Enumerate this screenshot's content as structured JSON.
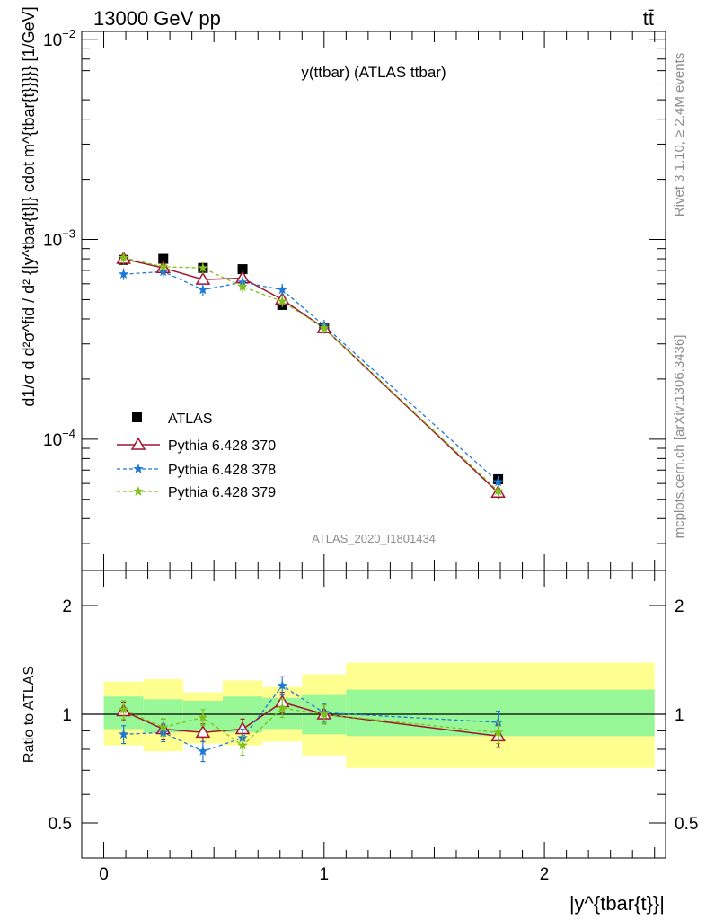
{
  "header": {
    "energy": "13000 GeV pp",
    "process": "tt̄"
  },
  "side": {
    "rivet": "Rivet 3.1.10, ≥ 2.4M events",
    "mcplots": "mcplots.cern.ch [arXiv:1306.3436]"
  },
  "colors": {
    "data": "#000000",
    "p370": "#a0142d",
    "p378": "#1f78d6",
    "p379": "#80c01a",
    "band_inner": "#98f898",
    "band_outer": "#ffff90"
  },
  "chart_data": [
    {
      "type": "scatter",
      "title": "y(ttbar) (ATLAS ttbar)",
      "analysis": "ATLAS_2020_I1801434",
      "ylabel": "d1/σ d d²σ^fid / d² {|y^tbar{t}|} cdot m^{tbar{t}}}}} [1/GeV]",
      "yscale": "log",
      "xlim": [
        -0.1,
        2.55
      ],
      "ylim": [
        2.2e-05,
        0.011
      ],
      "y_ticks": [
        {
          "value": 0.0001,
          "label": "10",
          "exp": "−4"
        },
        {
          "value": 0.001,
          "label": "10",
          "exp": "−3"
        },
        {
          "value": 0.01,
          "label": "10",
          "exp": "−2"
        }
      ],
      "legend": {
        "position": "bottom-left",
        "entries": [
          "ATLAS",
          "Pythia 6.428 370",
          "Pythia 6.428 378",
          "Pythia 6.428 379"
        ]
      },
      "x": [
        0.09,
        0.27,
        0.45,
        0.63,
        0.81,
        1.0,
        1.79
      ],
      "series": [
        {
          "name": "ATLAS",
          "marker": "square",
          "values": [
            0.00079,
            0.0008,
            0.00072,
            0.00071,
            0.00047,
            0.00036,
            6.3e-05
          ]
        },
        {
          "name": "Pythia 6.428 370",
          "marker": "triangle",
          "values": [
            0.0008,
            0.00072,
            0.00063,
            0.00064,
            0.0005,
            0.00036,
            5.4e-05
          ]
        },
        {
          "name": "Pythia 6.428 378",
          "marker": "star",
          "values": [
            0.00067,
            0.00069,
            0.00056,
            0.00061,
            0.00056,
            0.00037,
            6.1e-05
          ]
        },
        {
          "name": "Pythia 6.428 379",
          "marker": "star",
          "values": [
            0.00081,
            0.00073,
            0.00072,
            0.00058,
            0.00049,
            0.00036,
            5.5e-05
          ]
        }
      ]
    },
    {
      "type": "scatter",
      "ylabel": "Ratio to ATLAS",
      "xlabel": "|y^{tbar{t}}|",
      "yscale": "log",
      "xlim": [
        -0.1,
        2.55
      ],
      "ylim": [
        0.4,
        2.5
      ],
      "x_ticks": [
        {
          "value": 0,
          "label": "0"
        },
        {
          "value": 1,
          "label": "1"
        },
        {
          "value": 2,
          "label": "2"
        }
      ],
      "y_ticks": [
        {
          "value": 0.5,
          "label": "0.5"
        },
        {
          "value": 1,
          "label": "1"
        },
        {
          "value": 2,
          "label": "2"
        }
      ],
      "bins": [
        {
          "lo": 0.0,
          "hi": 0.18,
          "inner": [
            0.91,
            1.12
          ],
          "outer": [
            0.82,
            1.23
          ]
        },
        {
          "lo": 0.18,
          "hi": 0.36,
          "inner": [
            0.89,
            1.1
          ],
          "outer": [
            0.79,
            1.25
          ]
        },
        {
          "lo": 0.36,
          "hi": 0.54,
          "inner": [
            0.9,
            1.09
          ],
          "outer": [
            0.83,
            1.15
          ]
        },
        {
          "lo": 0.54,
          "hi": 0.72,
          "inner": [
            0.89,
            1.12
          ],
          "outer": [
            0.82,
            1.24
          ]
        },
        {
          "lo": 0.72,
          "hi": 0.9,
          "inner": [
            0.91,
            1.11
          ],
          "outer": [
            0.84,
            1.19
          ]
        },
        {
          "lo": 0.9,
          "hi": 1.1,
          "inner": [
            0.88,
            1.13
          ],
          "outer": [
            0.77,
            1.29
          ]
        },
        {
          "lo": 1.1,
          "hi": 2.5,
          "inner": [
            0.87,
            1.17
          ],
          "outer": [
            0.71,
            1.39
          ]
        }
      ],
      "x": [
        0.09,
        0.27,
        0.45,
        0.63,
        0.81,
        1.0,
        1.79
      ],
      "series": [
        {
          "name": "Pythia 6.428 370",
          "values": [
            1.02,
            0.91,
            0.89,
            0.91,
            1.08,
            1.0,
            0.87
          ],
          "err": [
            0.06,
            0.06,
            0.05,
            0.06,
            0.07,
            0.06,
            0.06
          ]
        },
        {
          "name": "Pythia 6.428 378",
          "values": [
            0.88,
            0.89,
            0.79,
            0.86,
            1.2,
            1.01,
            0.95
          ],
          "err": [
            0.05,
            0.05,
            0.05,
            0.05,
            0.07,
            0.06,
            0.07
          ]
        },
        {
          "name": "Pythia 6.428 379",
          "values": [
            1.03,
            0.92,
            0.98,
            0.82,
            1.04,
            1.0,
            0.89
          ],
          "err": [
            0.06,
            0.05,
            0.05,
            0.05,
            0.06,
            0.06,
            0.06
          ]
        }
      ]
    }
  ]
}
